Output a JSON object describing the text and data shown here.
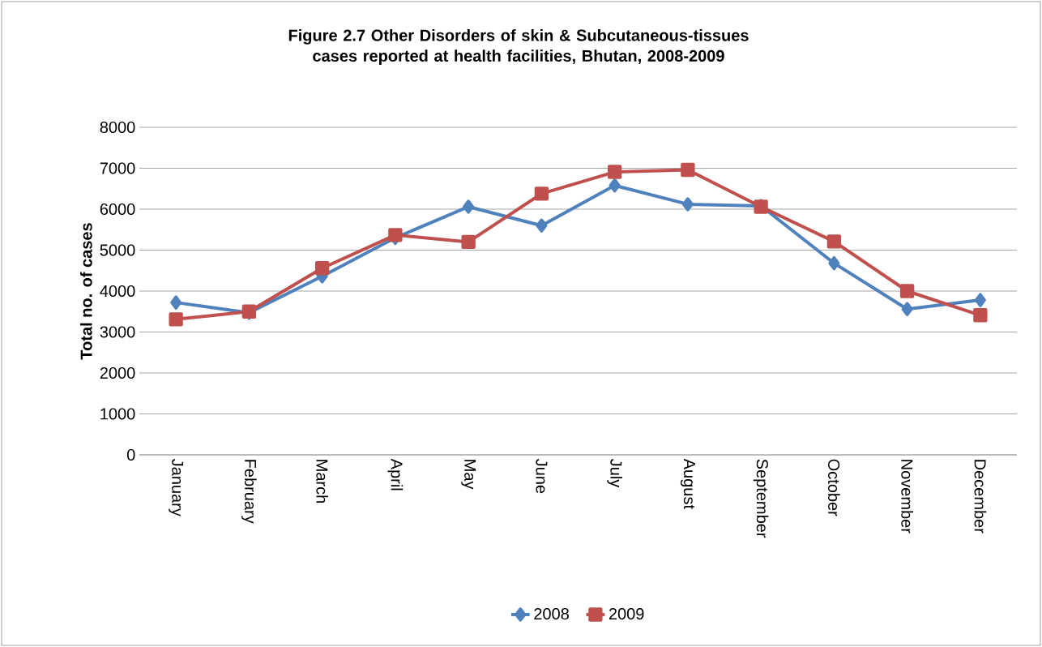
{
  "chart_data": {
    "type": "line",
    "title": "Figure 2.7 Other Disorders of skin & Subcutaneous-tissues cases reported at health facilities, Bhutan, 2008-2009",
    "ylabel": "Total no. of cases",
    "categories": [
      "January",
      "February",
      "March",
      "April",
      "May",
      "June",
      "July",
      "August",
      "September",
      "October",
      "November",
      "December"
    ],
    "series": [
      {
        "name": "2008",
        "color": "#4f81bd",
        "marker": "diamond",
        "values": [
          3720,
          3470,
          4360,
          5300,
          6060,
          5600,
          6580,
          6120,
          6080,
          4680,
          3560,
          3780
        ]
      },
      {
        "name": "2009",
        "color": "#c0504d",
        "marker": "square",
        "values": [
          3310,
          3500,
          4560,
          5370,
          5200,
          6380,
          6910,
          6960,
          6060,
          5210,
          4000,
          3410
        ]
      }
    ],
    "ylim": [
      0,
      8000
    ],
    "yticks": [
      0,
      1000,
      2000,
      3000,
      4000,
      5000,
      6000,
      7000,
      8000
    ],
    "grid": "y",
    "legend": "bottom",
    "line_style": "solid"
  }
}
